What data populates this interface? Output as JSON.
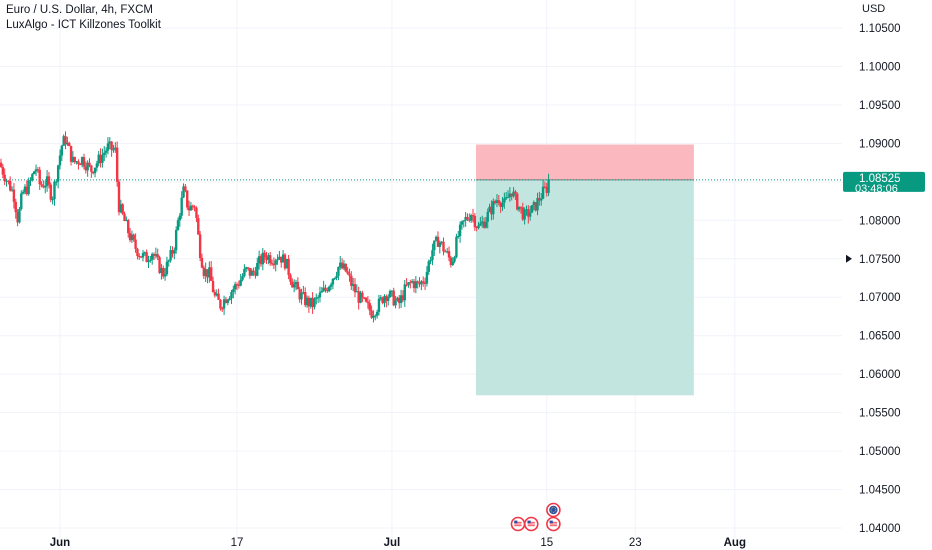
{
  "header": {
    "symbol_line": "Euro / U.S. Dollar, 4h, FXCM",
    "indicator_line": "LuxAlgo - ICT Killzones Toolkit",
    "currency": "USD"
  },
  "price_tag": {
    "price": "1.08525",
    "countdown": "03:48:06"
  },
  "colors": {
    "up": "#089981",
    "down": "#f23645",
    "tag": "#089981",
    "stop_zone": "#fcb8bf",
    "target_zone": "#c2e6df",
    "grid": "#f0f3fa",
    "axis_text": "#131722"
  },
  "chart_data": {
    "type": "candlestick",
    "title": "",
    "ylim": [
      1.0385,
      1.1075
    ],
    "y_ticks": [
      1.105,
      1.1,
      1.095,
      1.09,
      1.085,
      1.08,
      1.075,
      1.07,
      1.065,
      1.06,
      1.055,
      1.05,
      1.045,
      1.04
    ],
    "x_ticks": [
      {
        "label": "Jun",
        "day": 1
      },
      {
        "label": "17",
        "day": 17
      },
      {
        "label": "Jul",
        "day": 31
      },
      {
        "label": "15",
        "day": 45
      },
      {
        "label": "23",
        "day": 53
      },
      {
        "label": "Aug",
        "day": 62
      }
    ],
    "current_price": 1.08525,
    "position": {
      "type": "short",
      "entry": 1.08525,
      "stop": 1.08985,
      "target": 1.05725,
      "start_day": 38.6,
      "end_day": 58.3
    },
    "event_markers": [
      {
        "day": 42.4,
        "row": 0,
        "icon": "us-flag"
      },
      {
        "day": 43.6,
        "row": 0,
        "icon": "us-flag"
      },
      {
        "day": 45.6,
        "row": 0,
        "icon": "us-flag"
      },
      {
        "day": 45.6,
        "row": 1,
        "icon": "eu-flag"
      }
    ],
    "series": [
      {
        "name": "",
        "type": "close",
        "points": [
          [
            -4.5,
            1.0875
          ],
          [
            -3.8,
            1.0852
          ],
          [
            -3.2,
            1.0835
          ],
          [
            -2.8,
            1.08
          ],
          [
            -2.4,
            1.0835
          ],
          [
            -1.8,
            1.0845
          ],
          [
            -1.2,
            1.087
          ],
          [
            -0.8,
            1.0845
          ],
          [
            -0.2,
            1.085
          ],
          [
            0.3,
            1.083
          ],
          [
            0.8,
            1.087
          ],
          [
            1.2,
            1.09
          ],
          [
            1.5,
            1.0905
          ],
          [
            2.2,
            1.0875
          ],
          [
            3.0,
            1.088
          ],
          [
            3.8,
            1.0865
          ],
          [
            4.6,
            1.088
          ],
          [
            5.3,
            1.0895
          ],
          [
            6.0,
            1.089
          ],
          [
            6.3,
            1.082
          ],
          [
            6.8,
            1.08
          ],
          [
            7.3,
            1.078
          ],
          [
            7.8,
            1.0765
          ],
          [
            8.3,
            1.0755
          ],
          [
            8.8,
            1.075
          ],
          [
            9.3,
            1.076
          ],
          [
            9.8,
            1.0745
          ],
          [
            10.3,
            1.073
          ],
          [
            10.8,
            1.0745
          ],
          [
            11.3,
            1.0765
          ],
          [
            11.8,
            1.081
          ],
          [
            12.2,
            1.084
          ],
          [
            12.6,
            1.0815
          ],
          [
            13.2,
            1.082
          ],
          [
            13.6,
            1.0765
          ],
          [
            14.0,
            1.0735
          ],
          [
            14.5,
            1.073
          ],
          [
            15.0,
            1.07
          ],
          [
            15.5,
            1.069
          ],
          [
            16.0,
            1.07
          ],
          [
            16.6,
            1.071
          ],
          [
            17.2,
            1.072
          ],
          [
            17.8,
            1.0735
          ],
          [
            18.4,
            1.073
          ],
          [
            19.0,
            1.0745
          ],
          [
            19.6,
            1.0755
          ],
          [
            20.2,
            1.075
          ],
          [
            20.8,
            1.0755
          ],
          [
            21.4,
            1.0745
          ],
          [
            22.0,
            1.072
          ],
          [
            22.6,
            1.0705
          ],
          [
            23.2,
            1.0695
          ],
          [
            23.8,
            1.069
          ],
          [
            24.4,
            1.07
          ],
          [
            25.0,
            1.071
          ],
          [
            25.6,
            1.0725
          ],
          [
            26.2,
            1.074
          ],
          [
            26.8,
            1.0735
          ],
          [
            27.4,
            1.0715
          ],
          [
            28.0,
            1.07
          ],
          [
            28.6,
            1.069
          ],
          [
            29.2,
            1.068
          ],
          [
            29.8,
            1.069
          ],
          [
            30.4,
            1.0705
          ],
          [
            31.0,
            1.07
          ],
          [
            31.6,
            1.069
          ],
          [
            32.2,
            1.071
          ],
          [
            32.8,
            1.072
          ],
          [
            33.4,
            1.0715
          ],
          [
            34.0,
            1.0725
          ],
          [
            34.6,
            1.076
          ],
          [
            35.2,
            1.0775
          ],
          [
            35.8,
            1.076
          ],
          [
            36.4,
            1.0745
          ],
          [
            37.0,
            1.078
          ],
          [
            37.6,
            1.08
          ],
          [
            38.2,
            1.081
          ],
          [
            38.8,
            1.079
          ],
          [
            39.4,
            1.08
          ],
          [
            40.0,
            1.0815
          ],
          [
            40.6,
            1.083
          ],
          [
            41.2,
            1.082
          ],
          [
            41.8,
            1.084
          ],
          [
            42.2,
            1.0825
          ],
          [
            42.6,
            1.0815
          ],
          [
            43.0,
            1.0805
          ],
          [
            43.4,
            1.081
          ],
          [
            43.8,
            1.0815
          ],
          [
            44.2,
            1.0825
          ],
          [
            44.6,
            1.0835
          ],
          [
            45.0,
            1.0842
          ],
          [
            45.3,
            1.08525
          ]
        ]
      }
    ]
  }
}
